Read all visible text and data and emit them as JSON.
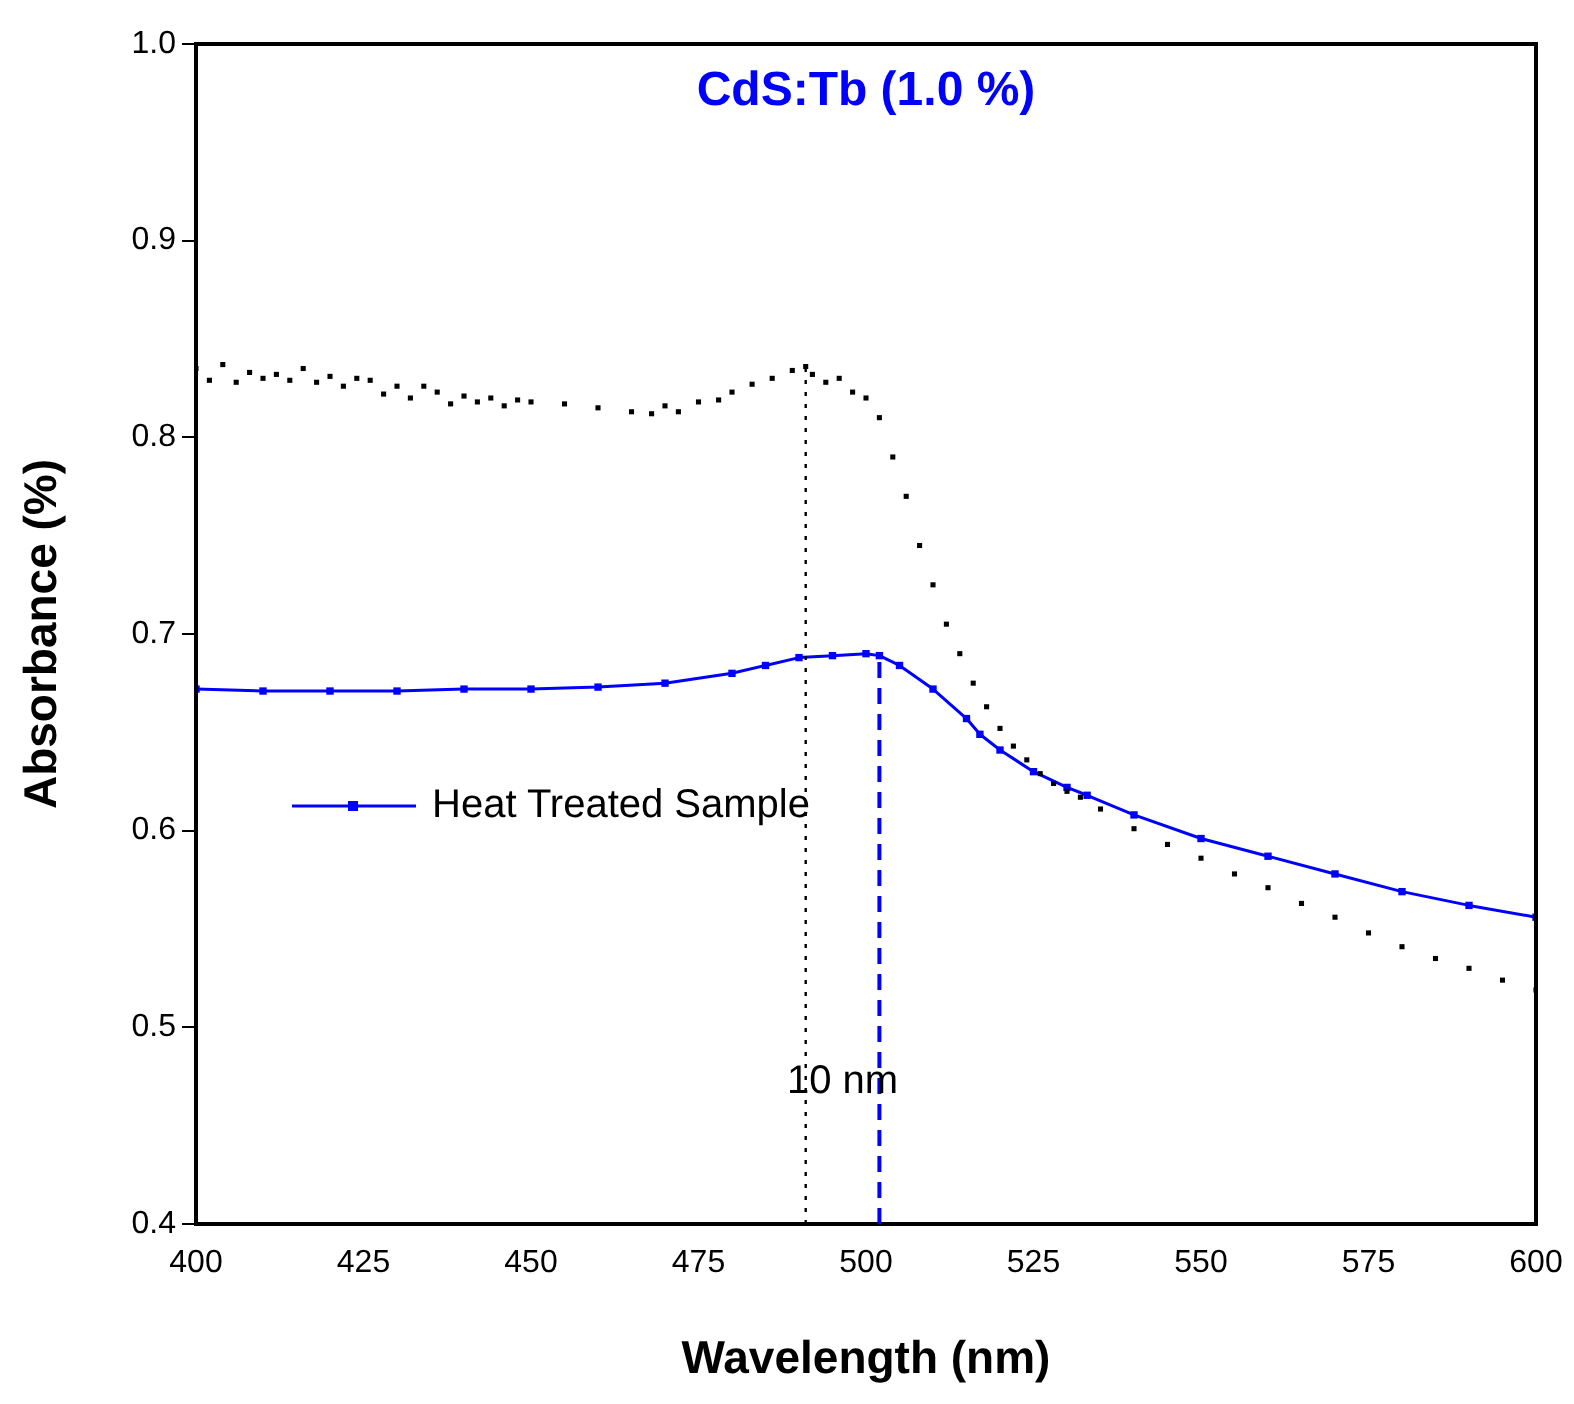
{
  "chart_data": {
    "type": "scatter",
    "title": "CdS:Tb (1.0 %)",
    "xlabel": "Wavelength (nm)",
    "ylabel": "Absorbance (%)",
    "xlim": [
      400,
      600
    ],
    "xticks": [
      400,
      425,
      450,
      475,
      500,
      525,
      550,
      575,
      600
    ],
    "ylim": [
      0.4,
      1.0
    ],
    "yticks": [
      0.4,
      0.5,
      0.6,
      0.7,
      0.8,
      0.9,
      {
        "value": 1.0,
        "label": "1.0"
      }
    ],
    "grid": false,
    "legend": "left",
    "marker": "square",
    "series": [
      {
        "color": "#000000",
        "x": [
          400,
          402,
          404,
          406,
          408,
          410,
          412,
          414,
          416,
          418,
          420,
          422,
          424,
          426,
          428,
          430,
          432,
          434,
          436,
          438,
          440,
          442,
          444,
          446,
          448,
          450,
          455,
          460,
          465,
          468,
          470,
          472,
          475,
          478,
          480,
          483,
          486,
          489,
          491,
          492,
          494,
          496,
          498,
          500,
          502,
          504,
          506,
          508,
          510,
          512,
          514,
          516,
          518,
          520,
          522,
          524,
          526,
          528,
          530,
          532,
          535,
          540,
          545,
          550,
          555,
          560,
          565,
          570,
          575,
          580,
          585,
          590,
          595,
          600
        ],
        "values": [
          0.835,
          0.829,
          0.837,
          0.828,
          0.833,
          0.83,
          0.832,
          0.829,
          0.835,
          0.828,
          0.831,
          0.826,
          0.83,
          0.829,
          0.822,
          0.826,
          0.82,
          0.826,
          0.823,
          0.817,
          0.821,
          0.818,
          0.82,
          0.816,
          0.819,
          0.818,
          0.817,
          0.815,
          0.813,
          0.812,
          0.816,
          0.813,
          0.818,
          0.819,
          0.823,
          0.827,
          0.83,
          0.834,
          0.836,
          0.832,
          0.828,
          0.83,
          0.823,
          0.82,
          0.81,
          0.79,
          0.77,
          0.745,
          0.725,
          0.705,
          0.69,
          0.675,
          0.663,
          0.652,
          0.643,
          0.636,
          0.629,
          0.624,
          0.62,
          0.617,
          0.611,
          0.601,
          0.593,
          0.586,
          0.578,
          0.571,
          0.563,
          0.556,
          0.548,
          0.541,
          0.535,
          0.53,
          0.524,
          0.519
        ]
      },
      {
        "name": "Heat Treated Sample",
        "color": "#0000ff",
        "type": "line",
        "x": [
          400,
          410,
          420,
          430,
          440,
          450,
          460,
          470,
          480,
          485,
          490,
          495,
          500,
          502,
          505,
          510,
          515,
          517,
          520,
          525,
          530,
          533,
          540,
          550,
          560,
          570,
          580,
          590,
          600
        ],
        "values": [
          0.672,
          0.671,
          0.671,
          0.671,
          0.672,
          0.672,
          0.673,
          0.675,
          0.68,
          0.684,
          0.688,
          0.689,
          0.69,
          0.689,
          0.684,
          0.672,
          0.657,
          0.649,
          0.641,
          0.63,
          0.622,
          0.618,
          0.608,
          0.596,
          0.587,
          0.578,
          0.569,
          0.562,
          0.556
        ]
      }
    ],
    "ref_lines": [
      {
        "axis": "x",
        "value": 491,
        "color": "#000000",
        "line_style": "dotted"
      },
      {
        "axis": "x",
        "value": 502,
        "color": "#0000ff",
        "line_style": "dashed"
      }
    ],
    "annotations": [
      "10 nm"
    ]
  }
}
